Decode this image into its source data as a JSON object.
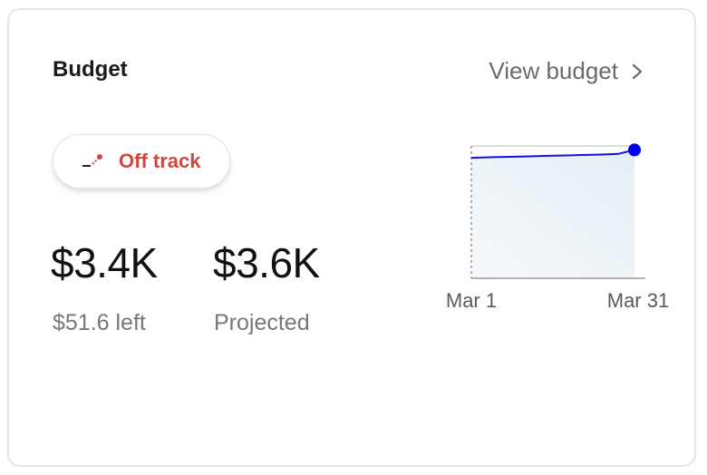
{
  "card": {
    "title": "Budget",
    "view_link": "View budget",
    "status": {
      "label": "Off track",
      "color": "#d0473f"
    },
    "spent": {
      "value": "$3.4K",
      "label": "$51.6 left"
    },
    "projected": {
      "value": "$3.6K",
      "label": "Projected"
    }
  },
  "chart_data": {
    "type": "area",
    "x_ticks": [
      "Mar 1",
      "Mar 31"
    ],
    "x": [
      1,
      5,
      10,
      15,
      20,
      25,
      28,
      31
    ],
    "y": [
      0.91,
      0.915,
      0.92,
      0.925,
      0.93,
      0.935,
      0.94,
      0.97
    ],
    "ylim": [
      0,
      1
    ],
    "budget_line": 1.0,
    "line_color": "#1010e0",
    "marker_color": "#0000ee",
    "fill_color": "#eaf2f6"
  }
}
